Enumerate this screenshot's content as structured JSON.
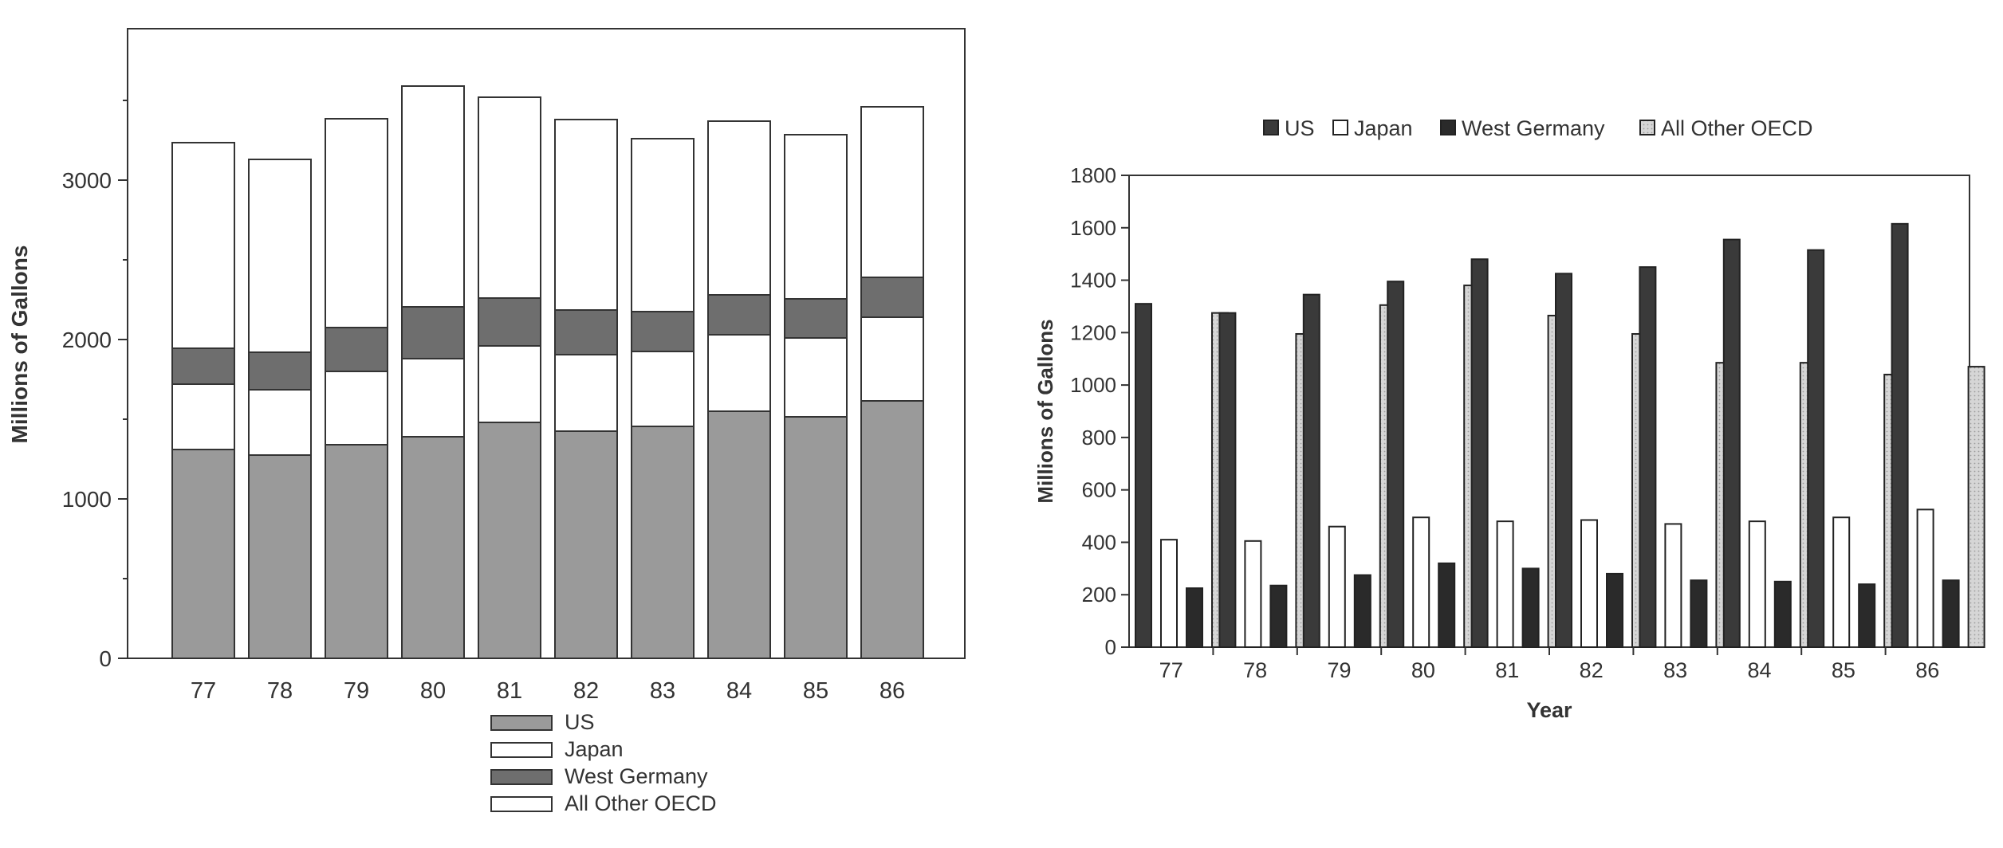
{
  "colors": {
    "us_stacked": "#9a9a9a",
    "japan": "#ffffff",
    "west_germany_stacked": "#6e6e6e",
    "all_other_oecd_stacked": "#ffffff",
    "us_grouped": "#3a3a3a",
    "west_germany_grouped": "#2a2a2a",
    "all_other_oecd_grouped": "#d4d4d4",
    "axis": "#333333"
  },
  "chart_data": [
    {
      "type": "bar",
      "stacked": true,
      "title": "",
      "xlabel": "",
      "ylabel": "Millions of Gallons",
      "ylim": [
        0,
        4000
      ],
      "yticks": [
        0,
        1000,
        2000,
        3000
      ],
      "grid": false,
      "legend_position": "bottom",
      "categories": [
        "77",
        "78",
        "79",
        "80",
        "81",
        "82",
        "83",
        "84",
        "85",
        "86"
      ],
      "series": [
        {
          "name": "US",
          "values": [
            1310,
            1275,
            1340,
            1390,
            1480,
            1425,
            1455,
            1550,
            1515,
            1615
          ]
        },
        {
          "name": "Japan",
          "values": [
            410,
            410,
            460,
            490,
            480,
            480,
            470,
            480,
            495,
            525
          ]
        },
        {
          "name": "West Germany",
          "values": [
            225,
            235,
            275,
            325,
            300,
            280,
            250,
            250,
            245,
            250
          ]
        },
        {
          "name": "All Other OECD",
          "values": [
            1290,
            1210,
            1310,
            1385,
            1260,
            1195,
            1085,
            1090,
            1030,
            1070
          ]
        }
      ]
    },
    {
      "type": "bar",
      "stacked": false,
      "title": "",
      "xlabel": "Year",
      "ylabel": "Millions of Gallons",
      "ylim": [
        0,
        1800
      ],
      "yticks": [
        0,
        200,
        400,
        600,
        800,
        1000,
        1200,
        1400,
        1600,
        1800
      ],
      "grid": false,
      "legend_position": "top",
      "categories": [
        "77",
        "78",
        "79",
        "80",
        "81",
        "82",
        "83",
        "84",
        "85",
        "86"
      ],
      "series": [
        {
          "name": "US",
          "values": [
            1310,
            1275,
            1345,
            1395,
            1480,
            1425,
            1450,
            1555,
            1515,
            1615
          ]
        },
        {
          "name": "Japan",
          "values": [
            410,
            405,
            460,
            495,
            480,
            485,
            470,
            480,
            495,
            525
          ]
        },
        {
          "name": "West Germany",
          "values": [
            225,
            235,
            275,
            320,
            300,
            280,
            255,
            250,
            240,
            255
          ]
        },
        {
          "name": "All Other OECD",
          "values": [
            1275,
            1195,
            1305,
            1380,
            1265,
            1195,
            1085,
            1085,
            1040,
            1070
          ]
        }
      ]
    }
  ]
}
